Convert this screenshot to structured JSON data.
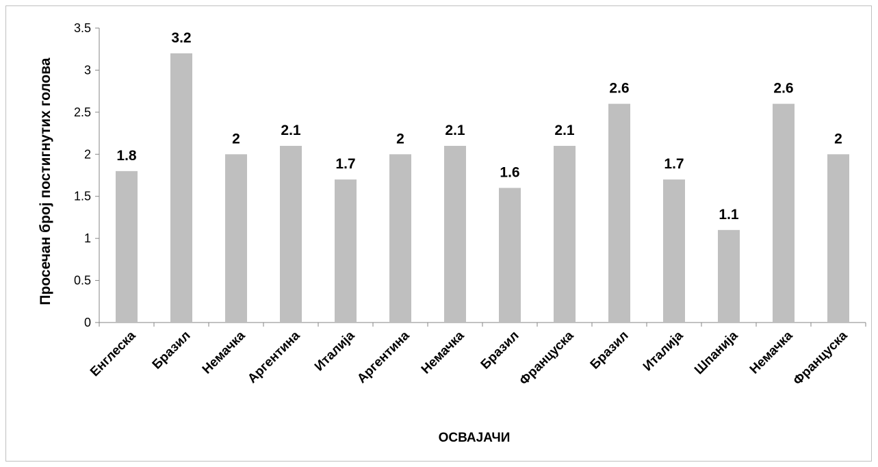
{
  "chart_data": {
    "type": "bar",
    "categories": [
      "Енглеска",
      "Бразил",
      "Немачка",
      "Аргентина",
      "Италија",
      "Аргентина",
      "Немачка",
      "Бразил",
      "Француска",
      "Бразил",
      "Италија",
      "Шпанија",
      "Немачка",
      "Француска"
    ],
    "values": [
      1.8,
      3.2,
      2,
      2.1,
      1.7,
      2,
      2.1,
      1.6,
      2.1,
      2.6,
      1.7,
      1.1,
      2.6,
      2
    ],
    "data_labels": [
      "1.8",
      "3.2",
      "2",
      "2.1",
      "1.7",
      "2",
      "2.1",
      "1.6",
      "2.1",
      "2.6",
      "1.7",
      "1.1",
      "2.6",
      "2"
    ],
    "xlabel": "ОСВАЈАЧИ",
    "ylabel": "Просечан број постигнутих голова",
    "ylim": [
      0,
      3.5
    ],
    "yticks": [
      "0",
      "0.5",
      "1",
      "1.5",
      "2",
      "2.5",
      "3",
      "3.5"
    ],
    "grid": false,
    "legend": "none",
    "bar_color": "#bfbfbf",
    "axis_color": "#868686"
  }
}
